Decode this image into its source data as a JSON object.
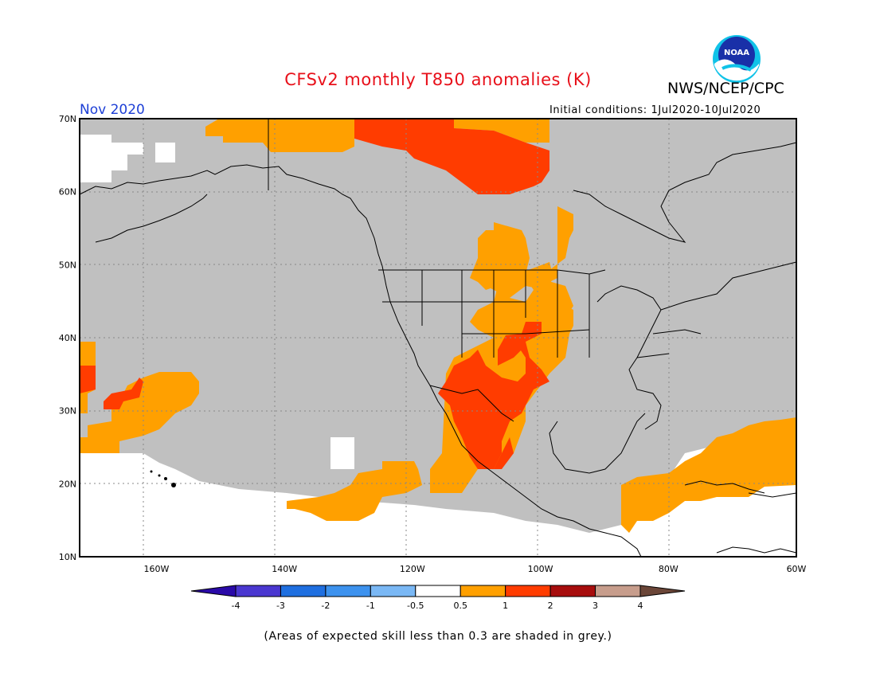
{
  "title": "CFSv2 monthly T850 anomalies (K)",
  "agency": "NWS/NCEP/CPC",
  "logo_text": "NOAA",
  "period": "Nov 2020",
  "initial_conditions": "Initial conditions: 1Jul2020-10Jul2020",
  "skill_note": "(Areas of expected skill less than 0.3 are shaded in grey.)",
  "map": {
    "lon_range": [
      -172,
      -60
    ],
    "lat_range": [
      10,
      70
    ],
    "lon_ticks": [
      {
        "label": "160W",
        "value": -160
      },
      {
        "label": "140W",
        "value": -140
      },
      {
        "label": "120W",
        "value": -120
      },
      {
        "label": "100W",
        "value": -100
      },
      {
        "label": "80W",
        "value": -80
      },
      {
        "label": "60W",
        "value": -60
      }
    ],
    "lat_ticks": [
      {
        "label": "70N",
        "value": 70
      },
      {
        "label": "60N",
        "value": 60
      },
      {
        "label": "50N",
        "value": 50
      },
      {
        "label": "40N",
        "value": 40
      },
      {
        "label": "30N",
        "value": 30
      },
      {
        "label": "20N",
        "value": 20
      },
      {
        "label": "10N",
        "value": 10
      }
    ],
    "colors": {
      "grey_low_skill": "#c0c0c0",
      "anom_0_5_to_1": "#ffa000",
      "anom_1_to_2": "#ff3c00",
      "frame": "#000000",
      "grid": "#888888"
    }
  },
  "colorbar": {
    "ticks": [
      "-4",
      "-3",
      "-2",
      "-1",
      "-0.5",
      "0.5",
      "1",
      "2",
      "3",
      "4"
    ],
    "colors": [
      "#2a0aa8",
      "#4a37d0",
      "#1f6fe0",
      "#3d92ee",
      "#7ab8f5",
      "#ffffff",
      "#ffa000",
      "#ff3c00",
      "#a70d0d",
      "#c79d8c",
      "#6b4638"
    ]
  }
}
